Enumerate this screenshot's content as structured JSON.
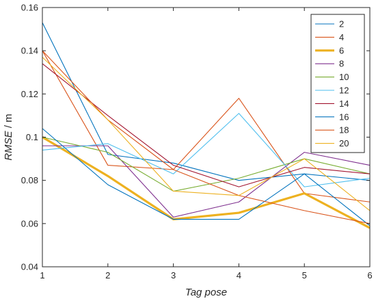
{
  "chart_data": {
    "type": "line",
    "xlabel": "Tag pose",
    "ylabel_italic": "RMSE",
    "ylabel_unit": " / m",
    "x": [
      1,
      2,
      3,
      4,
      5,
      6
    ],
    "xlim": [
      1,
      6
    ],
    "ylim": [
      0.04,
      0.16
    ],
    "x_ticks": [
      "1",
      "2",
      "3",
      "4",
      "5",
      "6"
    ],
    "y_ticks": [
      "0.04",
      "0.06",
      "0.08",
      "0.1",
      "0.12",
      "0.14",
      "0.16"
    ],
    "y_tick_values": [
      0.04,
      0.06,
      0.08,
      0.1,
      0.12,
      0.14,
      0.16
    ],
    "grid": false,
    "legend_position": "top-right",
    "series": [
      {
        "name": "2",
        "color": "#0072BD",
        "values": [
          0.153,
          0.092,
          0.088,
          0.08,
          0.083,
          0.08
        ]
      },
      {
        "name": "4",
        "color": "#D95319",
        "values": [
          0.14,
          0.087,
          0.085,
          0.118,
          0.074,
          0.07
        ]
      },
      {
        "name": "6",
        "color": "#EDB120",
        "highlight": true,
        "values": [
          0.1,
          0.082,
          0.062,
          0.065,
          0.074,
          0.058
        ]
      },
      {
        "name": "8",
        "color": "#7E2F8E",
        "values": [
          0.096,
          0.096,
          0.063,
          0.07,
          0.093,
          0.087
        ]
      },
      {
        "name": "10",
        "color": "#77AC30",
        "values": [
          0.1,
          0.093,
          0.075,
          0.081,
          0.09,
          0.083
        ]
      },
      {
        "name": "12",
        "color": "#4DBEEE",
        "values": [
          0.094,
          0.097,
          0.083,
          0.111,
          0.077,
          0.081
        ]
      },
      {
        "name": "14",
        "color": "#A2142F",
        "values": [
          0.134,
          0.11,
          0.087,
          0.077,
          0.086,
          0.083
        ]
      },
      {
        "name": "16",
        "color": "#0072BD",
        "values": [
          0.104,
          0.078,
          0.062,
          0.062,
          0.083,
          0.059
        ]
      },
      {
        "name": "18",
        "color": "#D95319",
        "values": [
          0.14,
          0.108,
          0.085,
          0.073,
          0.066,
          0.06
        ]
      },
      {
        "name": "20",
        "color": "#EDB120",
        "values": [
          0.137,
          0.108,
          0.075,
          0.073,
          0.09,
          0.066
        ]
      }
    ]
  }
}
